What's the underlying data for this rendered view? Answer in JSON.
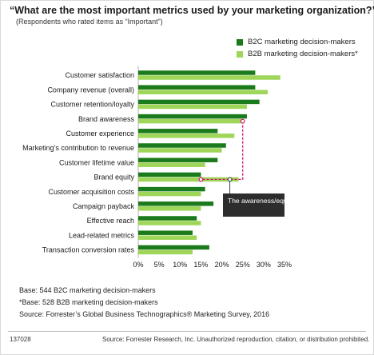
{
  "title": "“What are the most important metrics used by your marketing organization?”",
  "subtitle": "(Respondents who rated items as “Important”)",
  "legend": {
    "b2c": "B2C marketing decision-makers",
    "b2b": "B2B marketing decision-makers*"
  },
  "colors": {
    "b2c": "#1b7a1b",
    "b2b": "#9fd65a",
    "annotation_box": "#2d2d2d",
    "gap_line": "#d4106e"
  },
  "chart_data": {
    "type": "bar",
    "orientation": "horizontal",
    "categories": [
      "Customer satisfaction",
      "Company revenue (overall)",
      "Customer retention/loyalty",
      "Brand awareness",
      "Customer experience",
      "Marketing’s contribution to revenue",
      "Customer lifetime value",
      "Brand equity",
      "Customer acquisition costs",
      "Campaign payback",
      "Effective reach",
      "Lead-related metrics",
      "Transaction conversion rates"
    ],
    "series": [
      {
        "name": "B2C marketing decision-makers",
        "values": [
          28,
          28,
          29,
          26,
          19,
          21,
          19,
          15,
          16,
          18,
          14,
          13,
          17
        ]
      },
      {
        "name": "B2B marketing decision-makers*",
        "values": [
          34,
          31,
          26,
          25,
          23,
          20,
          16,
          24,
          15,
          15,
          15,
          14,
          13
        ]
      }
    ],
    "xlim": [
      0,
      35
    ],
    "xticks": [
      "0%",
      "5%",
      "10%",
      "15%",
      "20%",
      "25%",
      "30%",
      "35%"
    ],
    "annotation": {
      "text": "The awareness/equity gap",
      "connects": [
        "Brand awareness",
        "Brand equity"
      ]
    }
  },
  "notes": {
    "base1": "Base: 544 B2C marketing decision-makers",
    "base2": "*Base: 528 B2B marketing decision-makers",
    "source": "Source: Forrester’s Global Business Technographics® Marketing Survey, 2016"
  },
  "footer": {
    "id": "137028",
    "copyright": "Source: Forrester Research, Inc. Unauthorized reproduction, citation, or distribution prohibited."
  }
}
